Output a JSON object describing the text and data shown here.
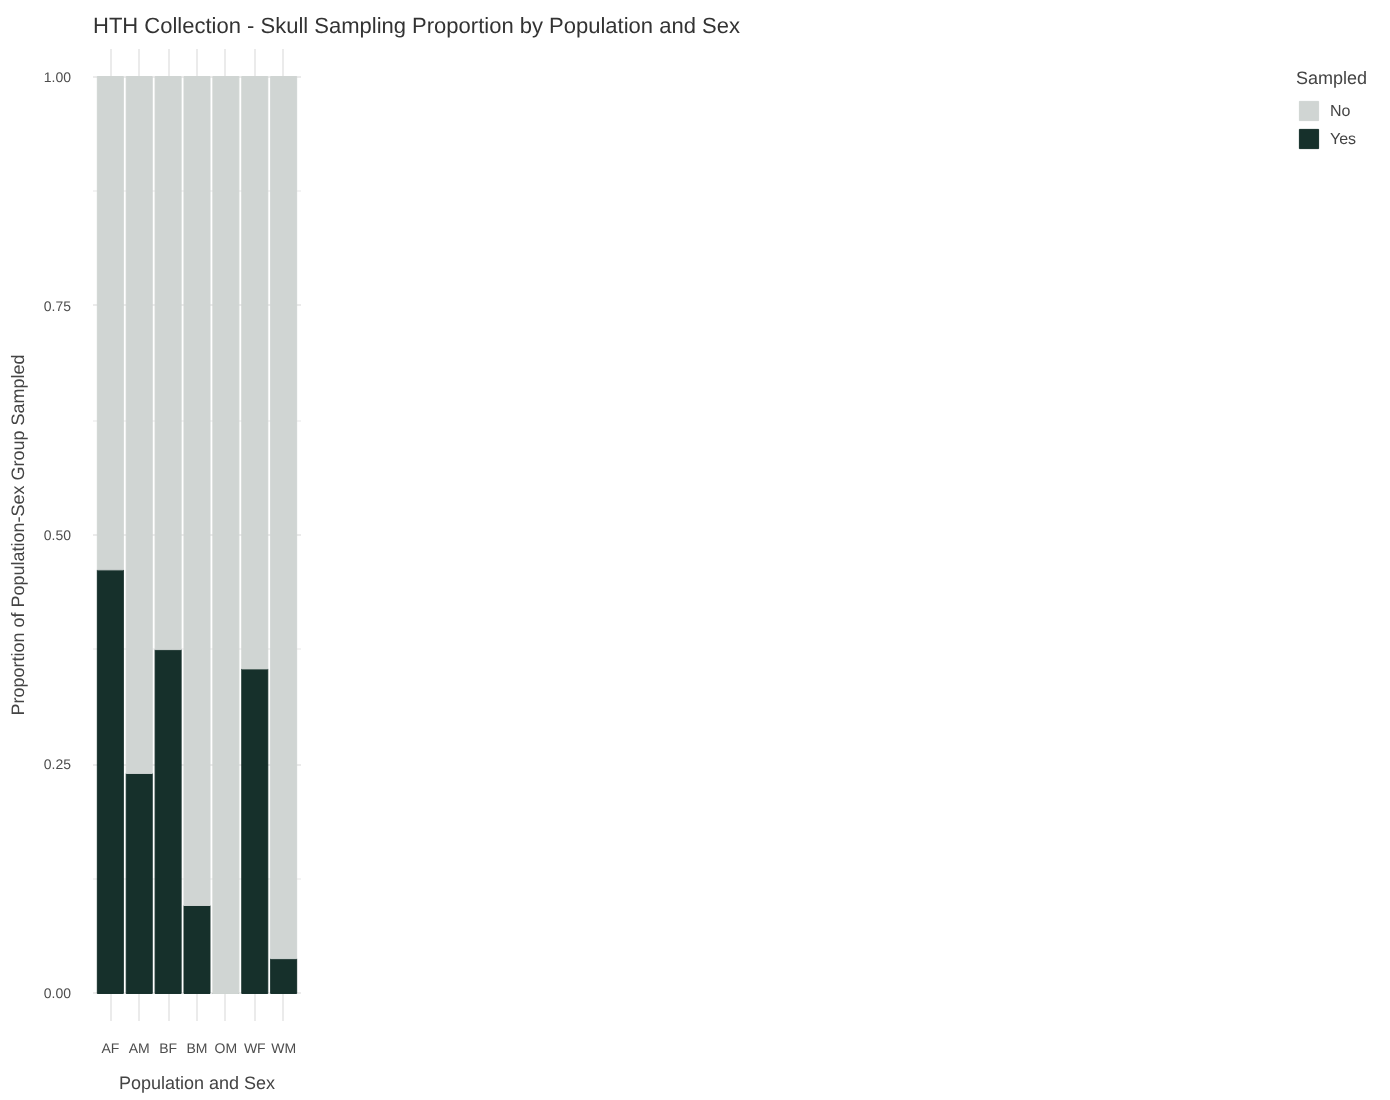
{
  "chart_data": {
    "type": "bar",
    "title": "HTH Collection - Skull Sampling Proportion by Population and Sex",
    "xlabel": "Population and Sex",
    "ylabel": "Proportion of Population-Sex Group Sampled",
    "legend_title": "Sampled",
    "categories": [
      "AF",
      "AM",
      "BF",
      "BM",
      "OM",
      "WF",
      "WM"
    ],
    "stacked": true,
    "series": [
      {
        "name": "Yes",
        "color": "#16302b",
        "values": [
          0.462,
          0.24,
          0.375,
          0.096,
          0.0,
          0.354,
          0.038
        ]
      },
      {
        "name": "No",
        "color": "#d0d5d3",
        "values": [
          0.538,
          0.76,
          0.625,
          0.904,
          1.0,
          0.646,
          0.962
        ]
      }
    ],
    "ylim": [
      0,
      1
    ],
    "yticks": [
      {
        "value": 0,
        "label": "0.00"
      },
      {
        "value": 0.25,
        "label": "0.25"
      },
      {
        "value": 0.5,
        "label": "0.50"
      },
      {
        "value": 0.75,
        "label": "0.75"
      },
      {
        "value": 1,
        "label": "1.00"
      }
    ],
    "grid": true,
    "legend": "right"
  }
}
